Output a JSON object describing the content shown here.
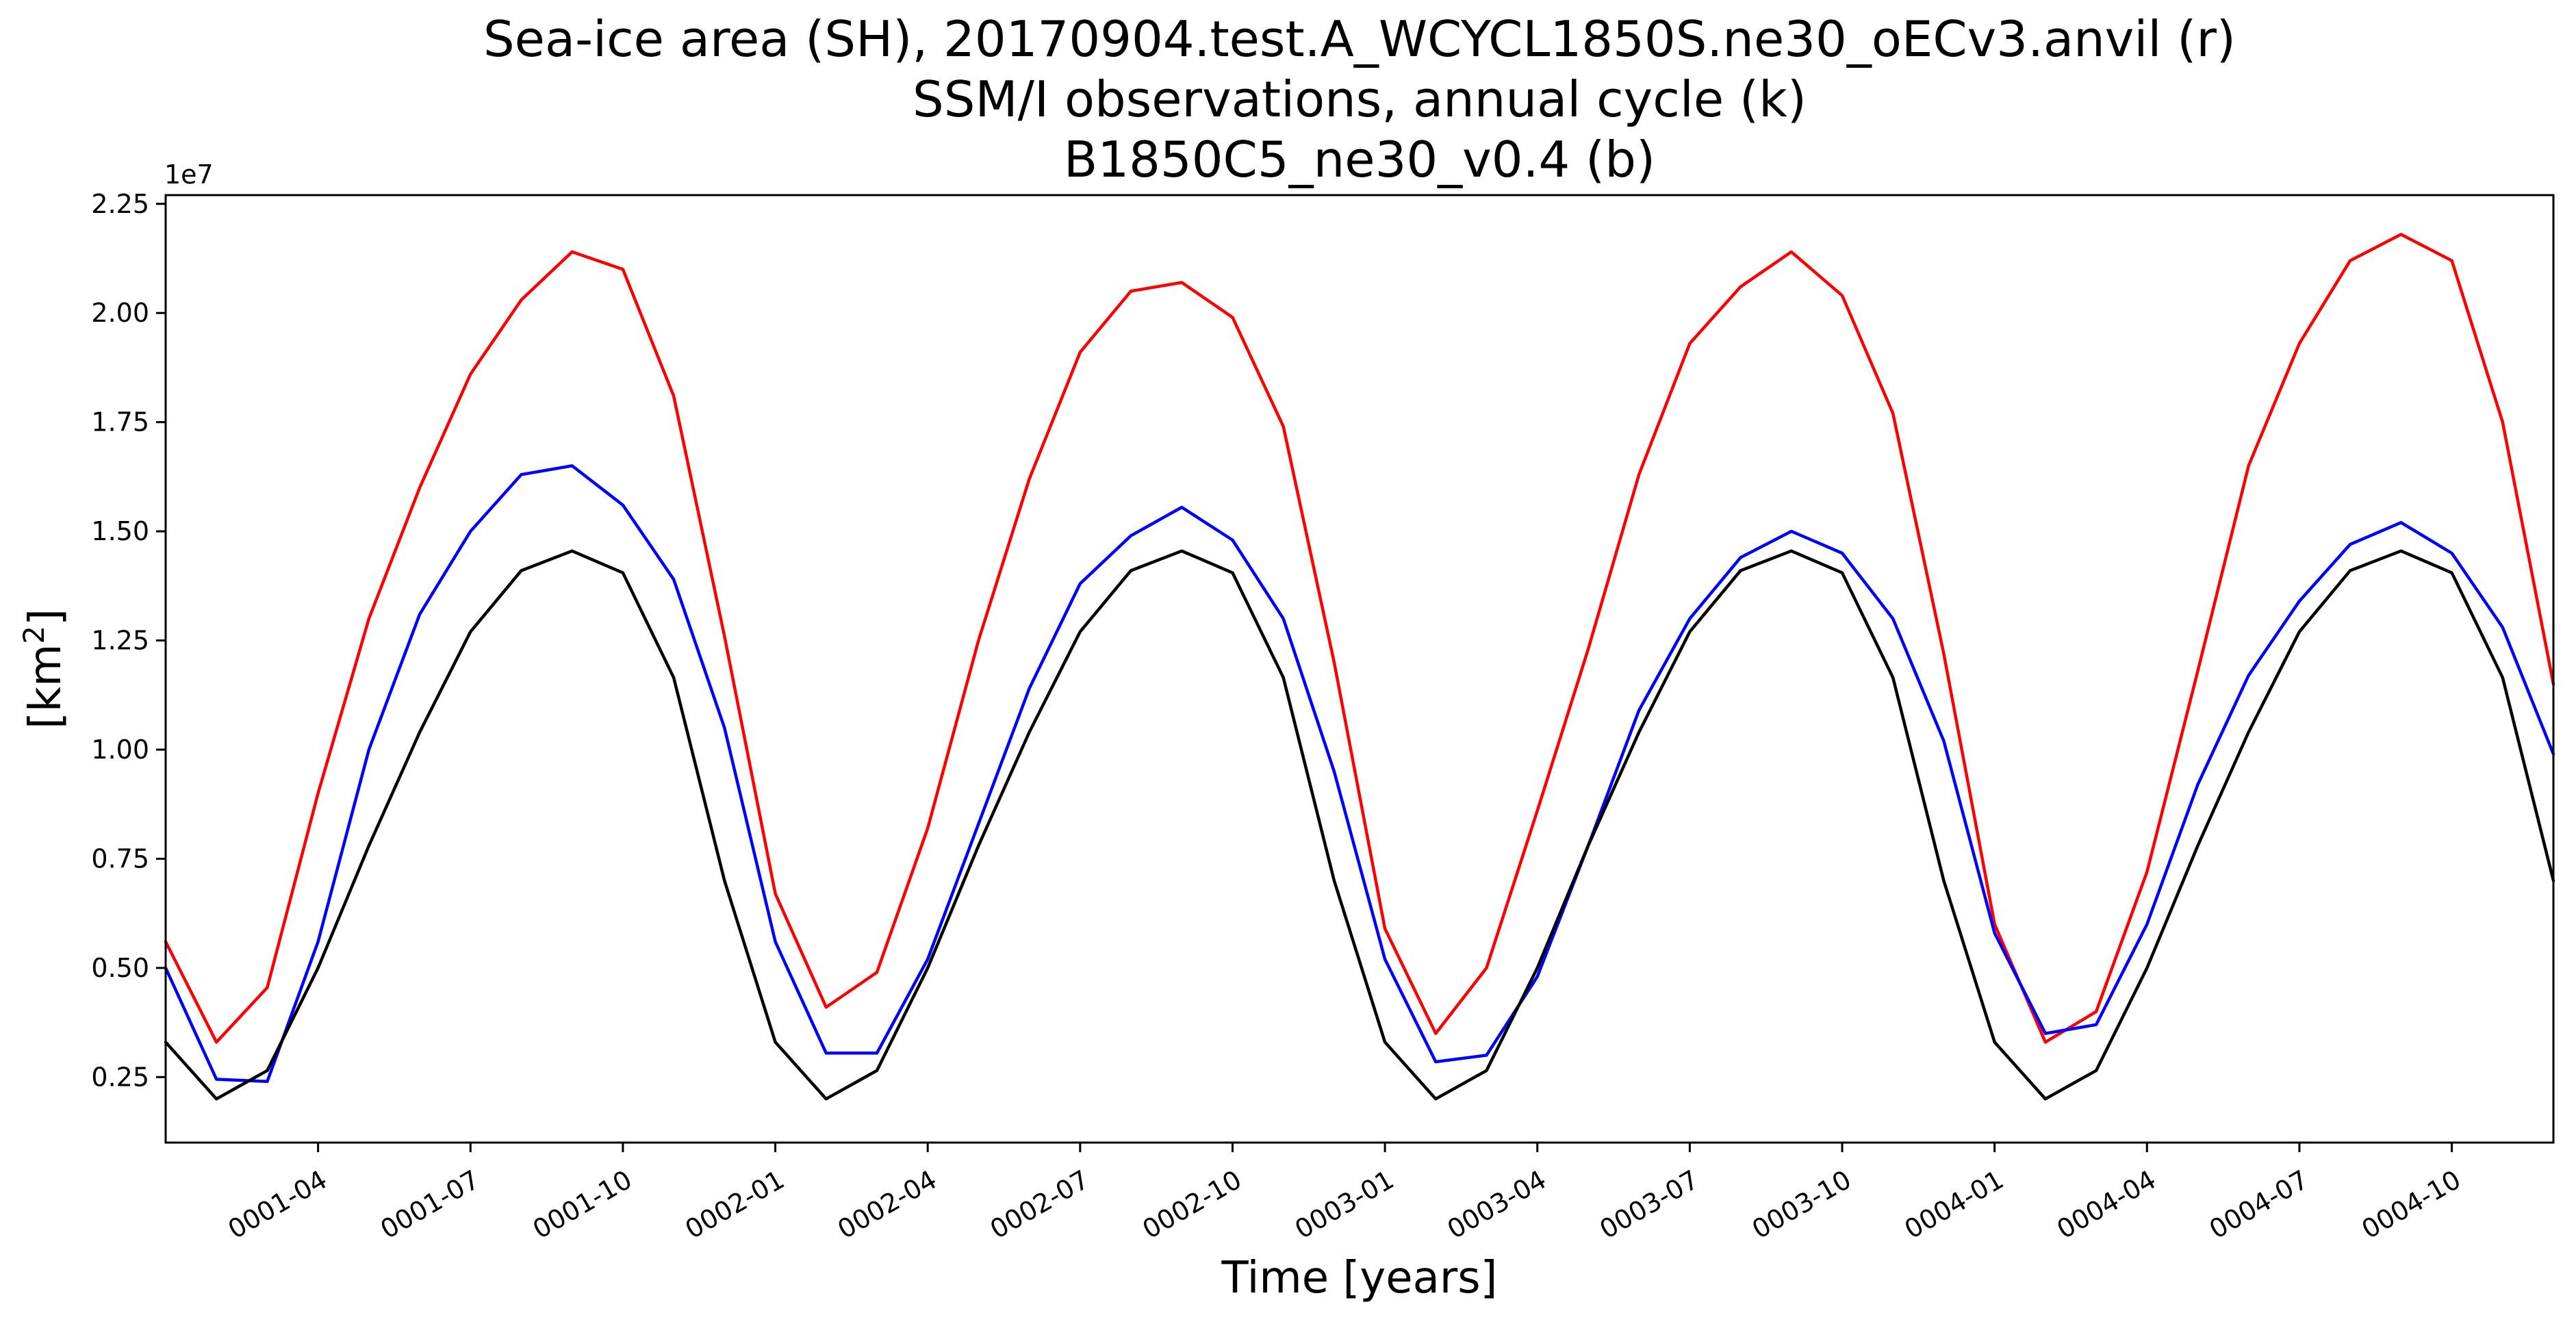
{
  "chart_data": {
    "type": "line",
    "title_lines": [
      "Sea-ice area (SH), 20170904.test.A_WCYCL1850S.ne30_oECv3.anvil (r)",
      "SSM/I observations, annual cycle (k)",
      "B1850C5_ne30_v0.4 (b)"
    ],
    "xlabel": "Time [years]",
    "ylabel": "[km²]",
    "y_offset_label": "1e7",
    "ylim": [
      0.1,
      2.27
    ],
    "y_ticks": [
      0.25,
      0.5,
      0.75,
      1.0,
      1.25,
      1.5,
      1.75,
      2.0,
      2.25
    ],
    "y_tick_labels": [
      "0.25",
      "0.50",
      "0.75",
      "1.00",
      "1.25",
      "1.50",
      "1.75",
      "2.00",
      "2.25"
    ],
    "x_months_range": [
      1,
      48
    ],
    "x_ticks_month_index": [
      4,
      7,
      10,
      13,
      16,
      19,
      22,
      25,
      28,
      31,
      34,
      37,
      40,
      43,
      46
    ],
    "x_tick_labels": [
      "0001-04",
      "0001-07",
      "0001-10",
      "0002-01",
      "0002-04",
      "0002-07",
      "0002-10",
      "0003-01",
      "0003-04",
      "0003-07",
      "0003-10",
      "0004-01",
      "0004-04",
      "0004-07",
      "0004-10"
    ],
    "grid": false,
    "series": [
      {
        "color": "#ff0000",
        "values": [
          0.56,
          0.33,
          0.455,
          0.9,
          1.3,
          1.6,
          1.86,
          2.03,
          2.14,
          2.1,
          1.81,
          1.26,
          0.67,
          0.41,
          0.49,
          0.82,
          1.25,
          1.62,
          1.91,
          2.05,
          2.07,
          1.99,
          1.74,
          1.2,
          0.59,
          0.35,
          0.5,
          0.86,
          1.23,
          1.63,
          1.93,
          2.06,
          2.14,
          2.04,
          1.77,
          1.22,
          0.6,
          0.33,
          0.4,
          0.72,
          1.18,
          1.65,
          1.93,
          2.12,
          2.18,
          2.12,
          1.75,
          1.15
        ]
      },
      {
        "color": "#0000ff",
        "values": [
          0.5,
          0.245,
          0.24,
          0.56,
          1.0,
          1.31,
          1.5,
          1.63,
          1.65,
          1.56,
          1.39,
          1.05,
          0.56,
          0.305,
          0.305,
          0.52,
          0.83,
          1.14,
          1.38,
          1.49,
          1.555,
          1.48,
          1.3,
          0.95,
          0.52,
          0.285,
          0.3,
          0.48,
          0.78,
          1.09,
          1.3,
          1.44,
          1.5,
          1.45,
          1.3,
          1.02,
          0.58,
          0.35,
          0.37,
          0.6,
          0.92,
          1.17,
          1.34,
          1.47,
          1.52,
          1.45,
          1.28,
          0.99
        ]
      },
      {
        "color": "#000000",
        "values": [
          0.33,
          0.2,
          0.265,
          0.5,
          0.78,
          1.04,
          1.27,
          1.41,
          1.455,
          1.405,
          1.165,
          0.7,
          0.33,
          0.2,
          0.265,
          0.5,
          0.78,
          1.04,
          1.27,
          1.41,
          1.455,
          1.405,
          1.165,
          0.7,
          0.33,
          0.2,
          0.265,
          0.5,
          0.78,
          1.04,
          1.27,
          1.41,
          1.455,
          1.405,
          1.165,
          0.7,
          0.33,
          0.2,
          0.265,
          0.5,
          0.78,
          1.04,
          1.27,
          1.41,
          1.455,
          1.405,
          1.165,
          0.7
        ]
      }
    ]
  }
}
